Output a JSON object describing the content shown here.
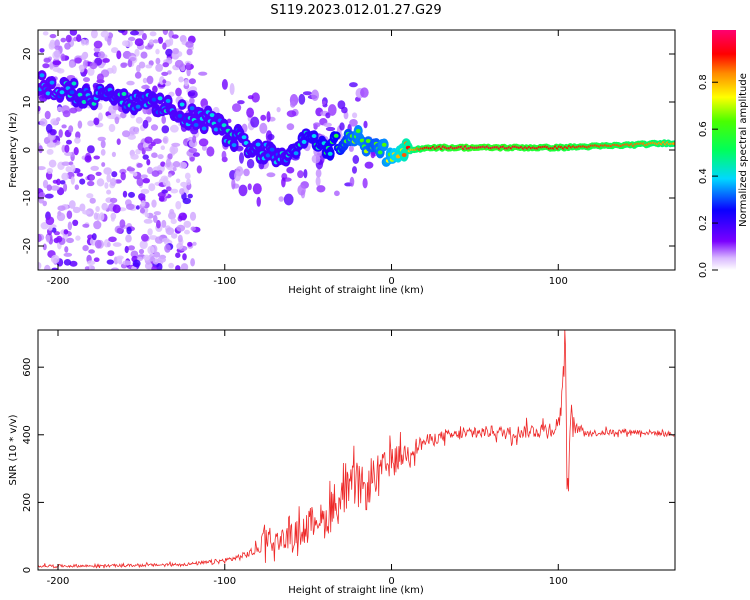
{
  "figure_title": "S119.2023.012.01.27.G29",
  "colors": {
    "snr_line": "#ee2a2a",
    "spectrogram_floor": "#ffffff",
    "axis": "#000000"
  },
  "chart_data": [
    {
      "type": "heatmap",
      "name": "spectrogram",
      "title": "S119.2023.012.01.27.G29",
      "xlabel": "Height of straight line (km)",
      "ylabel": "Frequency (Hz)",
      "xlim": [
        -212,
        170
      ],
      "ylim": [
        -25,
        25
      ],
      "x_ticks": [
        -200,
        -100,
        0,
        100
      ],
      "y_ticks": [
        -20,
        -10,
        0,
        10,
        20
      ],
      "colorbar": {
        "label": "Normalized spectral amplitude",
        "range": [
          0,
          1
        ],
        "ticks": [
          "0.0",
          "0.2",
          "0.4",
          "0.6",
          "0.8"
        ],
        "colormap": "hsv-rainbow (white → violet → blue → cyan → green → yellow → red → magenta)"
      },
      "ridge": {
        "x": [
          -210,
          -190,
          -170,
          -150,
          -130,
          -110,
          -95,
          -80,
          -65,
          -50,
          -35,
          -20,
          -10,
          0,
          20,
          50,
          100,
          140,
          170
        ],
        "frequency": [
          14,
          12,
          11,
          10,
          8,
          6,
          3,
          0,
          -1,
          2,
          1,
          3,
          0,
          -1,
          0.5,
          0.5,
          0.5,
          1,
          1.5
        ],
        "amplitude": [
          0.25,
          0.3,
          0.3,
          0.3,
          0.28,
          0.28,
          0.3,
          0.3,
          0.3,
          0.35,
          0.4,
          0.55,
          0.5,
          0.6,
          0.9,
          0.95,
          0.9,
          0.85,
          0.8
        ]
      }
    },
    {
      "type": "line",
      "name": "snr",
      "xlabel": "Height of straight line (km)",
      "ylabel": "SNR (10 * v/v)",
      "xlim": [
        -212,
        170
      ],
      "ylim": [
        0,
        710
      ],
      "x_ticks": [
        -200,
        -100,
        0,
        100
      ],
      "y_ticks": [
        0,
        200,
        400,
        600
      ],
      "series": [
        {
          "name": "SNR",
          "x": [
            -212,
            -180,
            -150,
            -130,
            -120,
            -110,
            -100,
            -90,
            -80,
            -75,
            -72,
            -68,
            -60,
            -50,
            -45,
            -40,
            -35,
            -30,
            -25,
            -20,
            -15,
            -10,
            -5,
            0,
            10,
            20,
            30,
            40,
            50,
            60,
            70,
            80,
            90,
            98,
            100,
            102,
            104,
            106,
            108,
            110,
            120,
            140,
            160,
            170
          ],
          "y": [
            12,
            12,
            14,
            16,
            18,
            22,
            28,
            40,
            60,
            120,
            80,
            90,
            100,
            130,
            160,
            140,
            190,
            210,
            240,
            260,
            230,
            280,
            300,
            320,
            350,
            380,
            395,
            400,
            405,
            410,
            405,
            410,
            415,
            420,
            430,
            500,
            680,
            250,
            450,
            420,
            405,
            410,
            405,
            400
          ],
          "spread": [
            5,
            5,
            5,
            6,
            6,
            8,
            10,
            12,
            20,
            70,
            40,
            35,
            45,
            60,
            60,
            60,
            90,
            80,
            80,
            80,
            70,
            70,
            60,
            55,
            40,
            25,
            20,
            20,
            22,
            22,
            25,
            25,
            30,
            30,
            40,
            60,
            60,
            140,
            60,
            20,
            12,
            10,
            10,
            10
          ]
        }
      ]
    }
  ]
}
